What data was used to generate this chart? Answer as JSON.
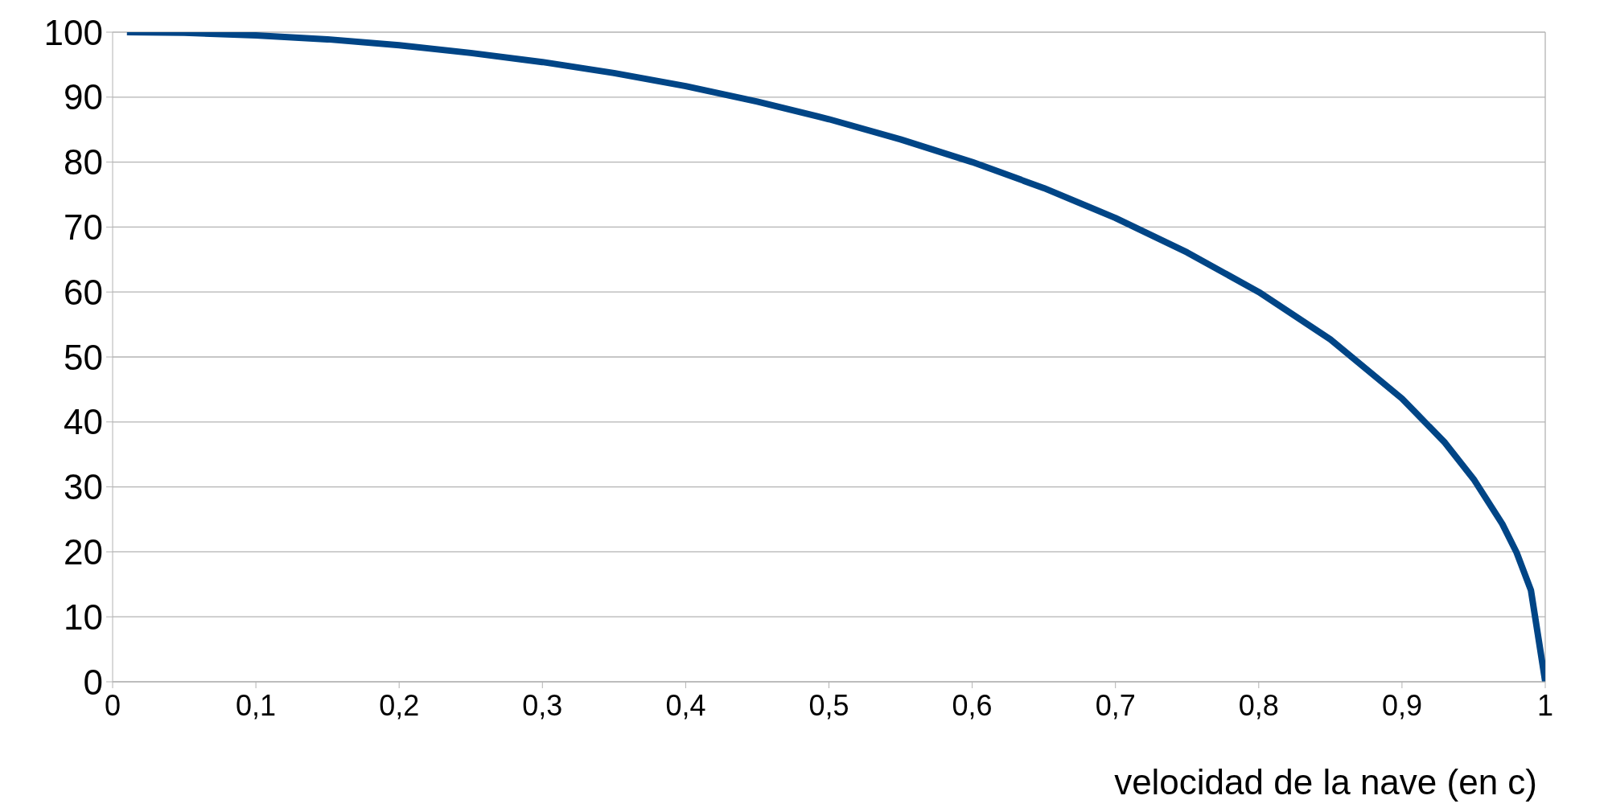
{
  "chart_data": {
    "type": "line",
    "xlabel": "velocidad de la nave (en c)",
    "x": [
      0.01,
      0.05,
      0.1,
      0.15,
      0.2,
      0.25,
      0.3,
      0.35,
      0.4,
      0.45,
      0.5,
      0.55,
      0.6,
      0.65,
      0.7,
      0.75,
      0.8,
      0.85,
      0.9,
      0.93,
      0.95,
      0.97,
      0.98,
      0.99,
      1
    ],
    "series": [
      {
        "color": "#004586",
        "values": [
          100,
          99.9,
          99.5,
          98.9,
          98,
          96.8,
          95.4,
          93.7,
          91.7,
          89.3,
          86.6,
          83.5,
          80,
          76,
          71.4,
          66.1,
          60,
          52.7,
          43.6,
          36.8,
          31.2,
          24.3,
          19.9,
          14.1,
          0
        ]
      }
    ],
    "xlim": [
      0,
      1
    ],
    "xticks": [
      {
        "value": 0,
        "label": "0"
      },
      {
        "value": 0.1,
        "label": "0,1"
      },
      {
        "value": 0.2,
        "label": "0,2"
      },
      {
        "value": 0.3,
        "label": "0,3"
      },
      {
        "value": 0.4,
        "label": "0,4"
      },
      {
        "value": 0.5,
        "label": "0,5"
      },
      {
        "value": 0.6,
        "label": "0,6"
      },
      {
        "value": 0.7,
        "label": "0,7"
      },
      {
        "value": 0.8,
        "label": "0,8"
      },
      {
        "value": 0.9,
        "label": "0,9"
      },
      {
        "value": 1,
        "label": "1"
      }
    ],
    "ylim": [
      0,
      100
    ],
    "yticks": [
      0,
      10,
      20,
      30,
      40,
      50,
      60,
      70,
      80,
      90,
      100
    ],
    "grid": "y",
    "legend": false,
    "marker": "none",
    "line_style": "solid"
  }
}
